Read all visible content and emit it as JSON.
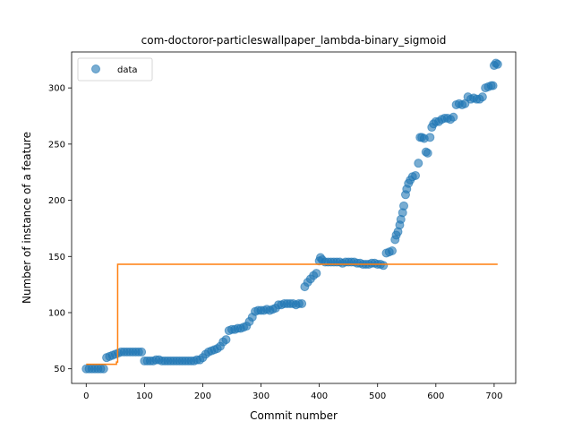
{
  "chart_data": {
    "type": "scatter",
    "title": "com-doctoror-particleswallpaper_lambda-binary_sigmoid",
    "xlabel": "Commit number",
    "ylabel": "Number of instance of a feature",
    "xlim": [
      -25,
      737
    ],
    "ylim": [
      37,
      332
    ],
    "xticks": [
      0,
      100,
      200,
      300,
      400,
      500,
      600,
      700
    ],
    "yticks": [
      50,
      100,
      150,
      200,
      250,
      300
    ],
    "legend": {
      "placement": "top-left",
      "entries": [
        "data"
      ]
    },
    "colors": {
      "data": "#1f77b4",
      "fit": "#ff7f0e"
    },
    "series": [
      {
        "name": "data",
        "kind": "scatter",
        "x": [
          0,
          5,
          10,
          15,
          20,
          25,
          30,
          35,
          40,
          45,
          50,
          55,
          60,
          65,
          70,
          75,
          80,
          85,
          90,
          95,
          100,
          105,
          110,
          115,
          120,
          125,
          130,
          135,
          140,
          145,
          150,
          155,
          160,
          165,
          170,
          175,
          180,
          185,
          190,
          195,
          200,
          205,
          210,
          215,
          220,
          225,
          230,
          235,
          240,
          245,
          250,
          255,
          260,
          265,
          270,
          275,
          280,
          285,
          290,
          295,
          300,
          305,
          310,
          315,
          320,
          325,
          330,
          335,
          340,
          345,
          350,
          355,
          360,
          365,
          370,
          375,
          380,
          385,
          390,
          395,
          400,
          402,
          405,
          410,
          415,
          420,
          425,
          430,
          435,
          440,
          445,
          450,
          455,
          460,
          465,
          470,
          475,
          480,
          485,
          490,
          495,
          500,
          505,
          510,
          515,
          520,
          525,
          530,
          532,
          535,
          538,
          540,
          543,
          545,
          548,
          550,
          553,
          556,
          560,
          565,
          570,
          573,
          576,
          580,
          583,
          586,
          590,
          593,
          596,
          600,
          605,
          610,
          615,
          620,
          625,
          630,
          635,
          640,
          645,
          650,
          655,
          660,
          665,
          670,
          675,
          680,
          685,
          690,
          695,
          698,
          700,
          703,
          706
        ],
        "y": [
          50,
          50,
          50,
          50,
          50,
          50,
          50,
          60,
          61,
          62,
          63,
          64,
          65,
          65,
          65,
          65,
          65,
          65,
          65,
          65,
          57,
          57,
          57,
          57,
          58,
          58,
          57,
          57,
          57,
          57,
          57,
          57,
          57,
          57,
          57,
          57,
          57,
          57,
          58,
          58,
          60,
          63,
          65,
          66,
          67,
          68,
          70,
          74,
          76,
          84,
          85,
          85,
          86,
          86,
          87,
          88,
          92,
          96,
          101,
          102,
          102,
          102,
          103,
          102,
          103,
          104,
          107,
          107,
          108,
          108,
          108,
          108,
          107,
          108,
          108,
          123,
          127,
          130,
          133,
          135,
          146,
          149,
          147,
          145,
          145,
          145,
          145,
          145,
          145,
          144,
          145,
          145,
          145,
          145,
          144,
          144,
          143,
          143,
          143,
          144,
          144,
          143,
          143,
          142,
          153,
          154,
          155,
          165,
          169,
          172,
          178,
          183,
          189,
          195,
          205,
          210,
          215,
          218,
          221,
          222,
          233,
          256,
          256,
          255,
          243,
          242,
          256,
          265,
          268,
          270,
          270,
          272,
          273,
          273,
          272,
          274,
          285,
          286,
          285,
          286,
          292,
          290,
          291,
          290,
          290,
          292,
          300,
          301,
          302,
          302,
          320,
          322,
          321
        ]
      },
      {
        "name": "",
        "kind": "line",
        "x": [
          0,
          52,
          52,
          54,
          54,
          706
        ],
        "y": [
          54,
          54,
          56,
          56,
          143,
          143
        ]
      }
    ]
  }
}
